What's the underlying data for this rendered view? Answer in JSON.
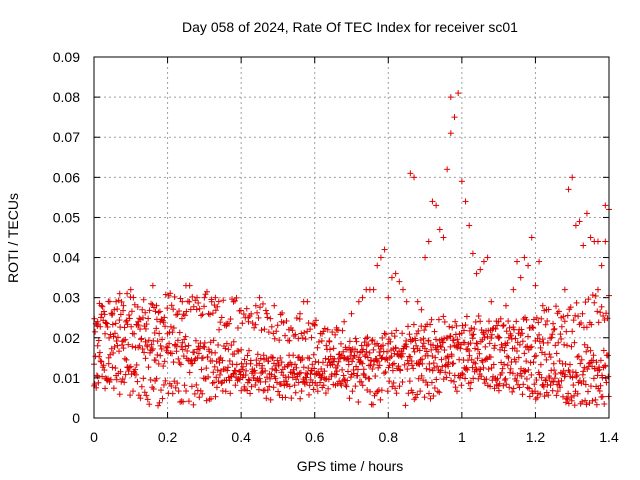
{
  "chart_data": {
    "type": "scatter",
    "title": "Day 058 of 2024, Rate Of TEC Index for receiver sc01",
    "xlabel": "GPS time / hours",
    "ylabel": "ROTI / TECUs",
    "xlim": [
      0,
      1.4
    ],
    "ylim": [
      0,
      0.09
    ],
    "x_ticks": [
      0,
      0.2,
      0.4,
      0.6,
      0.8,
      1,
      1.2,
      1.4
    ],
    "x_tick_labels": [
      "0",
      "0.2",
      "0.4",
      "0.6",
      "0.8",
      "1",
      "1.2",
      "1.4"
    ],
    "y_ticks": [
      0,
      0.01,
      0.02,
      0.03,
      0.04,
      0.05,
      0.06,
      0.07,
      0.08,
      0.09
    ],
    "y_tick_labels": [
      "0",
      "0.01",
      "0.02",
      "0.03",
      "0.04",
      "0.05",
      "0.06",
      "0.07",
      "0.08",
      "0.09"
    ],
    "grid": true,
    "marker": "+",
    "color": "#e00000",
    "series": [
      {
        "name": "ROTI",
        "points": [
          [
            0.0,
            0.008
          ],
          [
            0.01,
            0.018
          ],
          [
            0.01,
            0.024
          ],
          [
            0.02,
            0.028
          ],
          [
            0.03,
            0.021
          ],
          [
            0.04,
            0.015
          ],
          [
            0.05,
            0.026
          ],
          [
            0.06,
            0.029
          ],
          [
            0.07,
            0.031
          ],
          [
            0.08,
            0.028
          ],
          [
            0.09,
            0.031
          ],
          [
            0.1,
            0.032
          ],
          [
            0.12,
            0.024
          ],
          [
            0.14,
            0.019
          ],
          [
            0.16,
            0.033
          ],
          [
            0.17,
            0.028
          ],
          [
            0.18,
            0.024
          ],
          [
            0.2,
            0.021
          ],
          [
            0.22,
            0.018
          ],
          [
            0.24,
            0.029
          ],
          [
            0.25,
            0.033
          ],
          [
            0.26,
            0.033
          ],
          [
            0.28,
            0.03
          ],
          [
            0.3,
            0.03
          ],
          [
            0.32,
            0.029
          ],
          [
            0.33,
            0.03
          ],
          [
            0.34,
            0.022
          ],
          [
            0.36,
            0.023
          ],
          [
            0.38,
            0.019
          ],
          [
            0.4,
            0.017
          ],
          [
            0.42,
            0.024
          ],
          [
            0.44,
            0.028
          ],
          [
            0.45,
            0.03
          ],
          [
            0.47,
            0.026
          ],
          [
            0.49,
            0.028
          ],
          [
            0.51,
            0.024
          ],
          [
            0.53,
            0.022
          ],
          [
            0.56,
            0.026
          ],
          [
            0.57,
            0.029
          ],
          [
            0.58,
            0.029
          ],
          [
            0.6,
            0.023
          ],
          [
            0.62,
            0.021
          ],
          [
            0.64,
            0.019
          ],
          [
            0.66,
            0.022
          ],
          [
            0.68,
            0.024
          ],
          [
            0.7,
            0.026
          ],
          [
            0.72,
            0.029
          ],
          [
            0.73,
            0.03
          ],
          [
            0.74,
            0.032
          ],
          [
            0.75,
            0.032
          ],
          [
            0.76,
            0.032
          ],
          [
            0.77,
            0.038
          ],
          [
            0.78,
            0.04
          ],
          [
            0.79,
            0.042
          ],
          [
            0.8,
            0.03
          ],
          [
            0.81,
            0.035
          ],
          [
            0.82,
            0.036
          ],
          [
            0.83,
            0.034
          ],
          [
            0.84,
            0.032
          ],
          [
            0.85,
            0.029
          ],
          [
            0.86,
            0.061
          ],
          [
            0.87,
            0.06
          ],
          [
            0.88,
            0.029
          ],
          [
            0.89,
            0.027
          ],
          [
            0.9,
            0.04
          ],
          [
            0.91,
            0.044
          ],
          [
            0.92,
            0.054
          ],
          [
            0.93,
            0.053
          ],
          [
            0.94,
            0.047
          ],
          [
            0.95,
            0.045
          ],
          [
            0.96,
            0.062
          ],
          [
            0.97,
            0.071
          ],
          [
            0.97,
            0.08
          ],
          [
            0.98,
            0.075
          ],
          [
            0.99,
            0.081
          ],
          [
            1.0,
            0.059
          ],
          [
            1.01,
            0.054
          ],
          [
            1.02,
            0.048
          ],
          [
            1.03,
            0.041
          ],
          [
            1.04,
            0.036
          ],
          [
            1.05,
            0.037
          ],
          [
            1.06,
            0.039
          ],
          [
            1.07,
            0.04
          ],
          [
            1.08,
            0.029
          ],
          [
            1.1,
            0.024
          ],
          [
            1.12,
            0.028
          ],
          [
            1.14,
            0.032
          ],
          [
            1.15,
            0.039
          ],
          [
            1.16,
            0.035
          ],
          [
            1.17,
            0.04
          ],
          [
            1.18,
            0.038
          ],
          [
            1.19,
            0.045
          ],
          [
            1.2,
            0.033
          ],
          [
            1.21,
            0.039
          ],
          [
            1.22,
            0.028
          ],
          [
            1.23,
            0.027
          ],
          [
            1.25,
            0.022
          ],
          [
            1.27,
            0.025
          ],
          [
            1.28,
            0.032
          ],
          [
            1.29,
            0.057
          ],
          [
            1.3,
            0.06
          ],
          [
            1.31,
            0.048
          ],
          [
            1.32,
            0.049
          ],
          [
            1.33,
            0.043
          ],
          [
            1.34,
            0.051
          ],
          [
            1.35,
            0.045
          ],
          [
            1.36,
            0.044
          ],
          [
            1.37,
            0.044
          ],
          [
            1.37,
            0.032
          ],
          [
            1.38,
            0.038
          ],
          [
            1.39,
            0.044
          ],
          [
            1.39,
            0.053
          ],
          [
            1.4,
            0.052
          ]
        ]
      }
    ]
  }
}
